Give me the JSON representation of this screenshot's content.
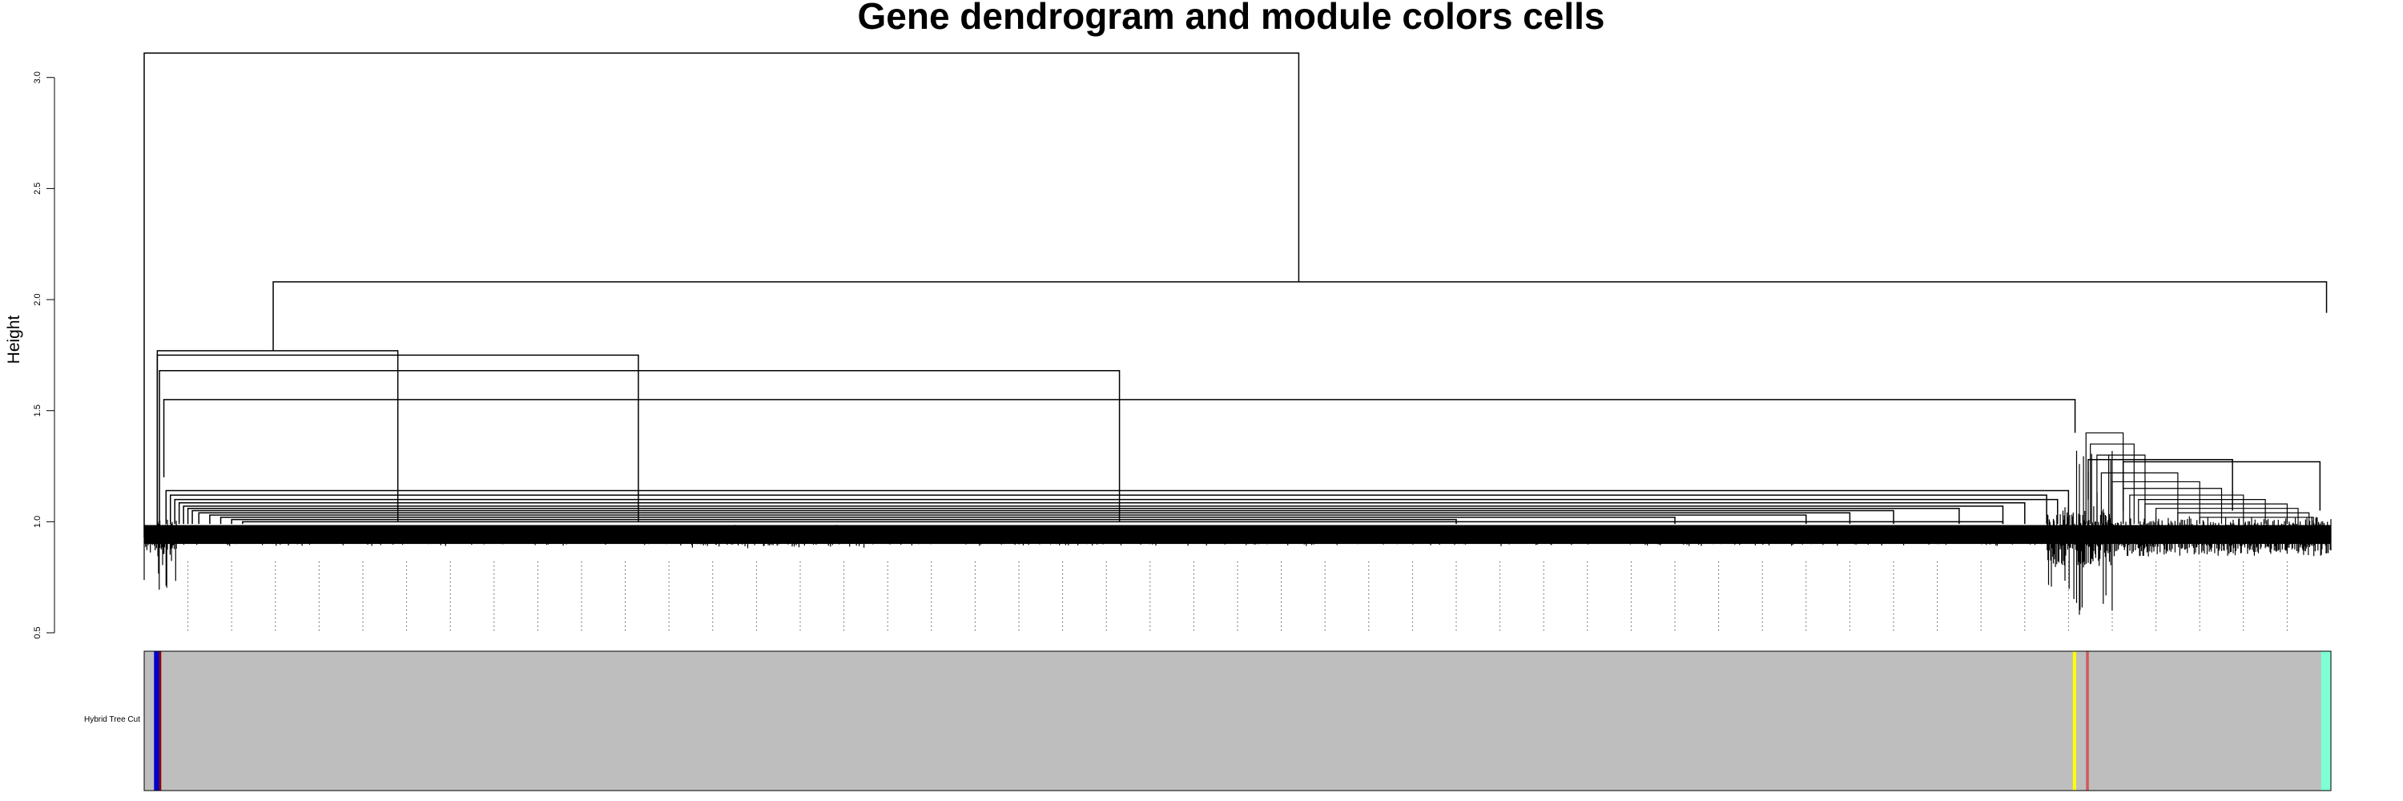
{
  "chart_data": {
    "type": "dendrogram",
    "title": "Gene dendrogram and module colors cells",
    "ylabel": "Height",
    "ylim": [
      0.5,
      3.1
    ],
    "y_ticks": [
      0.5,
      1.0,
      1.5,
      2.0,
      2.5,
      3.0
    ],
    "y_tick_labels": [
      "0.5",
      "1.0",
      "1.5",
      "2.0",
      "2.5",
      "3.0"
    ],
    "x_range": [
      0,
      1
    ],
    "merges": [
      {
        "left": 0.0,
        "right": 0.528,
        "height": 3.11,
        "left_height": 0.93,
        "right_height": 2.08
      },
      {
        "left": 0.059,
        "right": 0.998,
        "height": 2.08,
        "left_height": 1.77,
        "right_height": 1.94
      },
      {
        "left": 0.006,
        "right": 0.116,
        "height": 1.77,
        "left_height": 0.95,
        "right_height": 1.0
      },
      {
        "left": 0.006,
        "right": 0.226,
        "height": 1.75,
        "left_height": 0.95,
        "right_height": 1.0
      },
      {
        "left": 0.007,
        "right": 0.446,
        "height": 1.68,
        "left_height": 0.95,
        "right_height": 1.0
      },
      {
        "left": 0.009,
        "right": 0.883,
        "height": 1.55,
        "left_height": 1.2,
        "right_height": 1.4
      },
      {
        "left": 0.889,
        "right": 0.955,
        "height": 1.28,
        "left_height": 1.1,
        "right_height": 1.05
      },
      {
        "left": 0.905,
        "right": 0.995,
        "height": 1.27,
        "left_height": 1.05,
        "right_height": 1.05
      }
    ],
    "color_bar": {
      "label": "Hybrid Tree Cut",
      "base_color": "#bebebe",
      "bands": [
        {
          "color": "#0000cd",
          "start": 0.0045,
          "end": 0.0068
        },
        {
          "color": "#8b0000",
          "start": 0.0068,
          "end": 0.0078
        },
        {
          "color": "#ffff00",
          "start": 0.882,
          "end": 0.8835
        },
        {
          "color": "#cd5c5c",
          "start": 0.888,
          "end": 0.8893
        },
        {
          "color": "#7fffd4",
          "start": 0.9955,
          "end": 1.0
        }
      ]
    }
  }
}
